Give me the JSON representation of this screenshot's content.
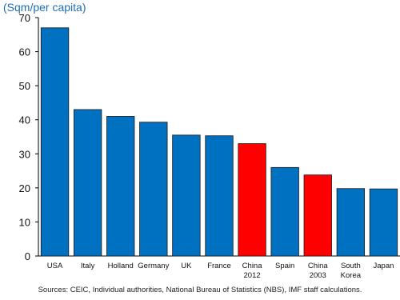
{
  "chart_data": {
    "type": "bar",
    "ylabel": "(Sqm/per capita)",
    "ylim": [
      0,
      70
    ],
    "yticks": [
      0,
      10,
      20,
      30,
      40,
      50,
      60,
      70
    ],
    "grid": false,
    "legend": "none",
    "categories": [
      "USA",
      "Italy",
      "Holland",
      "Germany",
      "UK",
      "France",
      "China 2012",
      "Spain",
      "China 2003",
      "South Korea",
      "Japan"
    ],
    "category_lines": [
      [
        "USA"
      ],
      [
        "Italy"
      ],
      [
        "Holland"
      ],
      [
        "Germany"
      ],
      [
        "UK"
      ],
      [
        "France"
      ],
      [
        "China",
        "2012"
      ],
      [
        "Spain"
      ],
      [
        "China",
        "2003"
      ],
      [
        "South",
        "Korea"
      ],
      [
        "Japan"
      ]
    ],
    "values": [
      67,
      43,
      41,
      39.3,
      35.5,
      35.3,
      33,
      26,
      23.8,
      19.8,
      19.7
    ],
    "colors": [
      "#0070c0",
      "#0070c0",
      "#0070c0",
      "#0070c0",
      "#0070c0",
      "#0070c0",
      "#ff0000",
      "#0070c0",
      "#ff0000",
      "#0070c0",
      "#0070c0"
    ],
    "source": "Sources: CEIC, Individual authorities, National Bureau of Statistics (NBS), IMF staff calculations."
  }
}
